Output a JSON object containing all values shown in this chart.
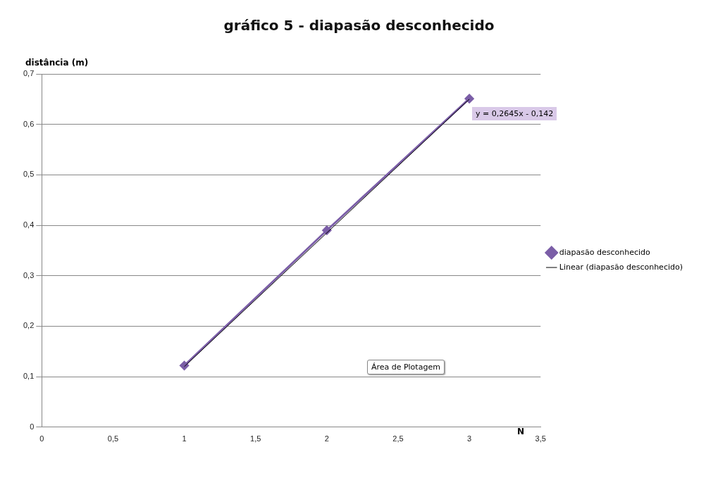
{
  "chart_data": {
    "type": "line",
    "title": "gráfico 5 - diapasão desconhecido",
    "xlabel": "N",
    "ylabel": "distância (m)",
    "series": [
      {
        "name": "diapasão desconhecido",
        "color": "#7b5ea7",
        "x": [
          1,
          2,
          3
        ],
        "values": [
          0.122,
          0.39,
          0.651
        ],
        "marker": "diamond"
      },
      {
        "name": "Linear (diapasão desconhecido)",
        "color": "#000000",
        "x": [
          1,
          3
        ],
        "values": [
          0.12,
          0.65
        ],
        "marker": "none"
      }
    ],
    "xlim": [
      0,
      3.5
    ],
    "xticks": [
      0,
      {
        "value": 0.5,
        "label": "0,5"
      },
      1,
      {
        "value": 1.5,
        "label": "1,5"
      },
      2,
      {
        "value": 2.5,
        "label": "2,5"
      },
      3,
      {
        "value": 3.5,
        "label": "3,5"
      }
    ],
    "ylim": [
      0,
      0.7
    ],
    "yticks": [
      0,
      {
        "value": 0.1,
        "label": "0,1"
      },
      {
        "value": 0.2,
        "label": "0,2"
      },
      {
        "value": 0.3,
        "label": "0,3"
      },
      {
        "value": 0.4,
        "label": "0,4"
      },
      {
        "value": 0.5,
        "label": "0,5"
      },
      {
        "value": 0.6,
        "label": "0,6"
      },
      {
        "value": 0.7,
        "label": "0,7"
      }
    ],
    "grid": "y",
    "legend": "right",
    "annotations": [
      "y = 0,2645x - 0,142",
      "Área de Plotagem"
    ]
  }
}
